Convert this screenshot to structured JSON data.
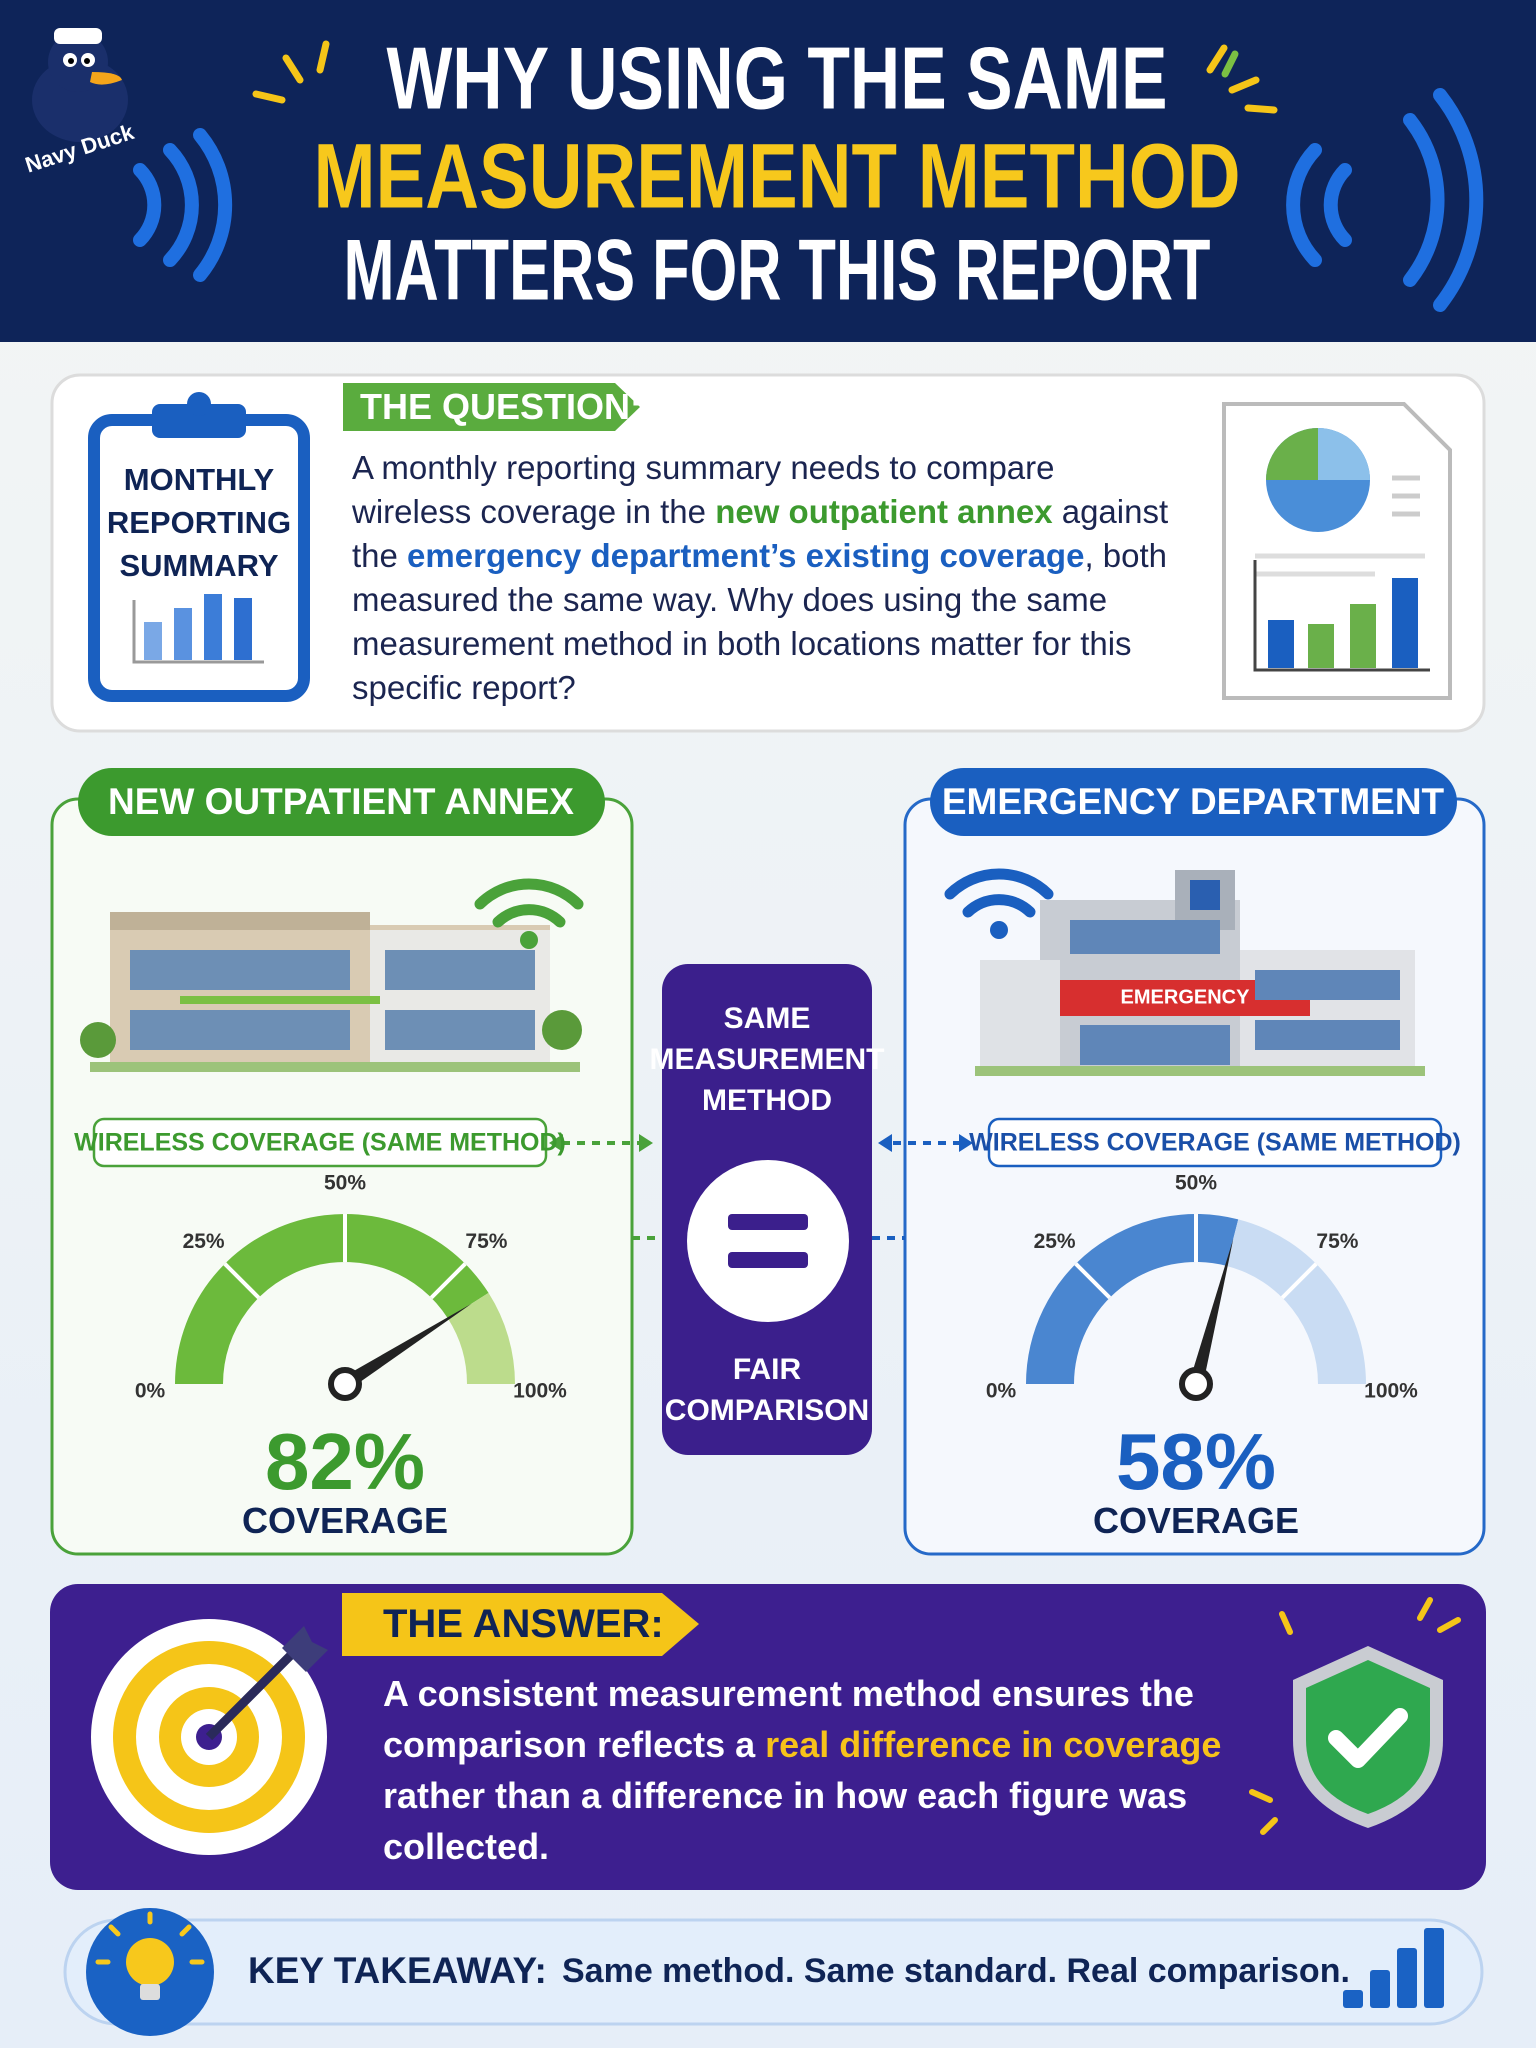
{
  "header": {
    "brand": "Navy Duck",
    "title_lines": [
      "WHY USING THE SAME",
      "MEASUREMENT METHOD",
      "MATTERS FOR THIS REPORT"
    ]
  },
  "question": {
    "icon_lines": [
      "MONTHLY",
      "REPORTING",
      "SUMMARY"
    ],
    "heading": "THE QUESTION:",
    "text": [
      {
        "text": "A monthly reporting summary needs to compare wireless coverage in the "
      },
      {
        "text": "new outpatient annex",
        "color": "#3c9a2e"
      },
      {
        "text": " against the "
      },
      {
        "text": "emergency department’s existing coverage",
        "color": "#1a5fc0"
      },
      {
        "text": ", both measured the same way. Why does using the same measurement method in both locations matter for this specific report?"
      }
    ]
  },
  "annex": {
    "title": "NEW OUTPATIENT ANNEX",
    "metric_label": "WIRELESS COVERAGE (SAME METHOD)",
    "gauge": {
      "value": 82,
      "label": "82%",
      "ticks": [
        {
          "value": 0,
          "label": "0%"
        },
        {
          "value": 25,
          "label": "25%"
        },
        {
          "value": 50,
          "label": "50%"
        },
        {
          "value": 75,
          "label": "75%"
        },
        {
          "value": 100,
          "label": "100%"
        }
      ]
    },
    "caption": "COVERAGE"
  },
  "center": {
    "lines": [
      "SAME",
      "MEASUREMENT",
      "METHOD"
    ],
    "result": [
      "FAIR",
      "COMPARISON"
    ]
  },
  "emergency": {
    "title": "EMERGENCY DEPARTMENT",
    "sign": "EMERGENCY",
    "metric_label": "WIRELESS COVERAGE (SAME METHOD)",
    "gauge": {
      "value": 58,
      "label": "58%",
      "ticks": [
        {
          "value": 0,
          "label": "0%"
        },
        {
          "value": 25,
          "label": "25%"
        },
        {
          "value": 50,
          "label": "50%"
        },
        {
          "value": 75,
          "label": "75%"
        },
        {
          "value": 100,
          "label": "100%"
        }
      ]
    },
    "caption": "COVERAGE"
  },
  "answer": {
    "heading": "THE ANSWER:",
    "text": [
      {
        "text": "A consistent measurement method ensures the comparison reflects a "
      },
      {
        "text": "real difference in coverage",
        "color": "#f7c21a"
      },
      {
        "text": " rather than a difference in how each figure was collected."
      }
    ]
  },
  "takeaway": {
    "label": "KEY TAKEAWAY:",
    "text": "Same method. Same standard. Real comparison."
  }
}
